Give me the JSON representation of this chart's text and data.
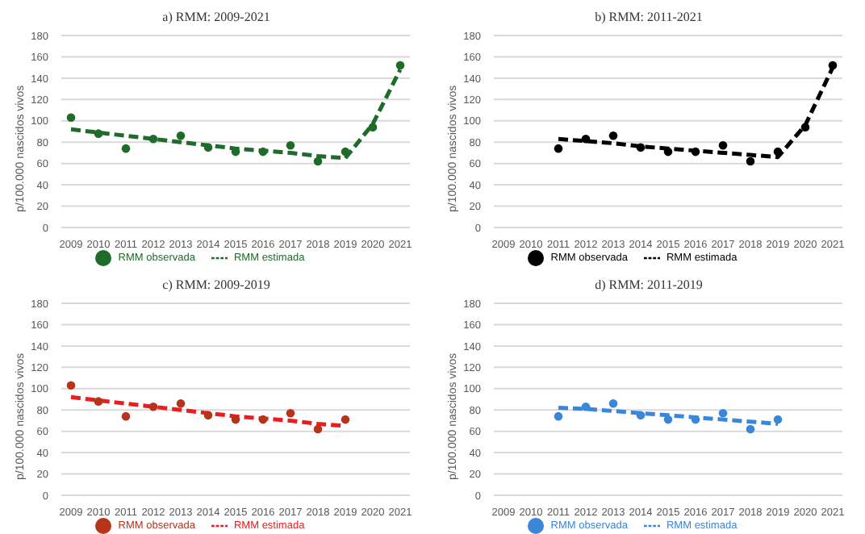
{
  "chart_data": [
    {
      "type": "scatter",
      "title": "a) RMM: 2009-2021",
      "ylabel": "p/100.000 nascidos vivos",
      "categories": [
        "2009",
        "2010",
        "2011",
        "2012",
        "2013",
        "2014",
        "2015",
        "2016",
        "2017",
        "2018",
        "2019",
        "2020",
        "2021"
      ],
      "ylim": [
        0,
        180
      ],
      "yticks": [
        0,
        20,
        40,
        60,
        80,
        100,
        120,
        140,
        160,
        180
      ],
      "grid": "y",
      "legend": "bottom",
      "series": [
        {
          "name": "RMM observada",
          "marker": "circle",
          "color": "#1e6b2a",
          "values": [
            103,
            88,
            74,
            83,
            86,
            75,
            71,
            71,
            77,
            62,
            71,
            94,
            152
          ]
        },
        {
          "name": "RMM estimada",
          "type": "line",
          "marker": "none",
          "line_style": "dashed",
          "color": "#1e6b2a",
          "values": [
            92,
            89,
            86,
            83,
            80,
            77,
            74,
            72,
            70,
            67,
            65,
            97,
            148
          ]
        }
      ]
    },
    {
      "type": "scatter",
      "title": "b) RMM: 2011-2021",
      "ylabel": "p/100.000 nascidos vivos",
      "categories": [
        "2009",
        "2010",
        "2011",
        "2012",
        "2013",
        "2014",
        "2015",
        "2016",
        "2017",
        "2018",
        "2019",
        "2020",
        "2021"
      ],
      "ylim": [
        0,
        180
      ],
      "yticks": [
        0,
        20,
        40,
        60,
        80,
        100,
        120,
        140,
        160,
        180
      ],
      "grid": "y",
      "legend": "bottom",
      "series": [
        {
          "name": "RMM observada",
          "marker": "circle",
          "color": "#000000",
          "values": [
            null,
            null,
            74,
            83,
            86,
            75,
            71,
            71,
            77,
            62,
            71,
            94,
            152
          ]
        },
        {
          "name": "RMM estimada",
          "type": "line",
          "marker": "none",
          "line_style": "dashed",
          "color": "#000000",
          "values": [
            null,
            null,
            83,
            81,
            79,
            76,
            74,
            72,
            70,
            68,
            66,
            96,
            150
          ]
        }
      ]
    },
    {
      "type": "scatter",
      "title": "c) RMM: 2009-2019",
      "ylabel": "p/100.000 nascidos vivos",
      "categories": [
        "2009",
        "2010",
        "2011",
        "2012",
        "2013",
        "2014",
        "2015",
        "2016",
        "2017",
        "2018",
        "2019",
        "2020",
        "2021"
      ],
      "ylim": [
        0,
        180
      ],
      "yticks": [
        0,
        20,
        40,
        60,
        80,
        100,
        120,
        140,
        160,
        180
      ],
      "grid": "y",
      "legend": "bottom",
      "series": [
        {
          "name": "RMM observada",
          "marker": "circle",
          "color": "#b5341a",
          "values": [
            103,
            88,
            74,
            83,
            86,
            75,
            71,
            71,
            77,
            62,
            71,
            null,
            null
          ]
        },
        {
          "name": "RMM estimada",
          "type": "line",
          "marker": "none",
          "line_style": "dashed",
          "color": "#ee1c1c",
          "values": [
            92,
            89,
            86,
            83,
            80,
            77,
            74,
            72,
            70,
            67,
            65,
            null,
            null
          ]
        }
      ]
    },
    {
      "type": "scatter",
      "title": "d) RMM: 2011-2019",
      "ylabel": "p/100.000 nascidos vivos",
      "categories": [
        "2009",
        "2010",
        "2011",
        "2012",
        "2013",
        "2014",
        "2015",
        "2016",
        "2017",
        "2018",
        "2019",
        "2020",
        "2021"
      ],
      "ylim": [
        0,
        180
      ],
      "yticks": [
        0,
        20,
        40,
        60,
        80,
        100,
        120,
        140,
        160,
        180
      ],
      "grid": "y",
      "legend": "bottom",
      "series": [
        {
          "name": "RMM observada",
          "marker": "circle",
          "color": "#3a86d8",
          "values": [
            null,
            null,
            74,
            83,
            86,
            75,
            71,
            71,
            77,
            62,
            71,
            null,
            null
          ]
        },
        {
          "name": "RMM estimada",
          "type": "line",
          "marker": "none",
          "line_style": "dashed",
          "color": "#3a86d8",
          "values": [
            null,
            null,
            82,
            81,
            79,
            77,
            75,
            73,
            71,
            69,
            67,
            null,
            null
          ]
        }
      ]
    }
  ]
}
